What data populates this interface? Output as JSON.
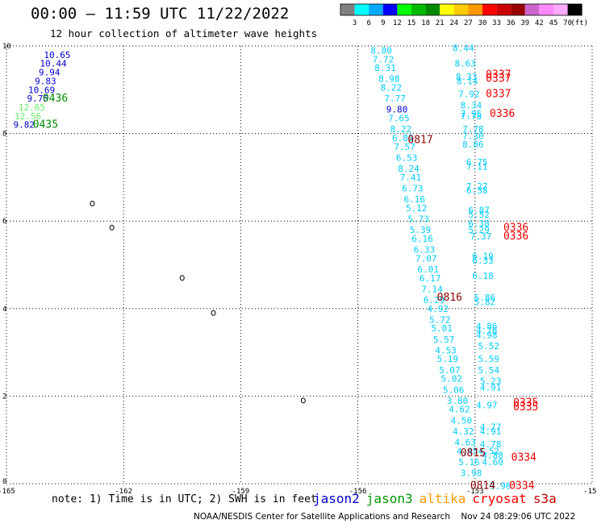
{
  "title": "00:00 – 11:59 UTC 11/22/2022",
  "subtitle": "12 hour collection of altimeter wave heights",
  "color_scale": {
    "labels": [
      "3",
      "6",
      "9",
      "12",
      "15",
      "18",
      "21",
      "24",
      "27",
      "30",
      "33",
      "36",
      "39",
      "42",
      "45",
      "70"
    ],
    "unit": "(ft)",
    "colors": [
      "#808080",
      "#00ffff",
      "#00aaff",
      "#0000ff",
      "#00ff00",
      "#00bb00",
      "#008800",
      "#ffff00",
      "#ffcc00",
      "#ff9900",
      "#ff0000",
      "#cc0000",
      "#990000",
      "#cc66cc",
      "#ff88ff",
      "#ffaaff",
      "#000000"
    ]
  },
  "axes": {
    "x_ticks": [
      "-165",
      "-162",
      "-159",
      "-156",
      "-153",
      "-150"
    ],
    "y_ticks": [
      "10",
      "8",
      "6",
      "4",
      "2",
      "0"
    ],
    "x_range": [
      -165,
      -150
    ],
    "y_range": [
      0,
      10
    ]
  },
  "colors": {
    "jason2": "#0000cc",
    "jason3": "#009900",
    "altika": "#ff9900",
    "cryosat": "#ff0000",
    "s3a": "#cc0000",
    "cyan": "#00ccff",
    "blue": "#0000cc",
    "green": "#008800",
    "lightgreen": "#66ee66",
    "red": "#ee0000",
    "darkred": "#880000"
  },
  "wave_heights": [
    {
      "v": "10.65",
      "lon": -163.7,
      "lat": 9.8,
      "c": "blue"
    },
    {
      "v": "10.44",
      "lon": -163.8,
      "lat": 9.6,
      "c": "blue"
    },
    {
      "v": "9.94",
      "lon": -163.9,
      "lat": 9.4,
      "c": "blue"
    },
    {
      "v": "9.83",
      "lon": -164.0,
      "lat": 9.2,
      "c": "blue"
    },
    {
      "v": "10.69",
      "lon": -164.1,
      "lat": 9.0,
      "c": "blue"
    },
    {
      "v": "9.75",
      "lon": -164.2,
      "lat": 8.8,
      "c": "blue"
    },
    {
      "v": "12.65",
      "lon": -164.35,
      "lat": 8.6,
      "c": "lightgreen"
    },
    {
      "v": "12.56",
      "lon": -164.45,
      "lat": 8.4,
      "c": "lightgreen"
    },
    {
      "v": "9.82",
      "lon": -164.55,
      "lat": 8.2,
      "c": "blue"
    },
    {
      "v": "8.80",
      "lon": -155.4,
      "lat": 9.9,
      "c": "cyan"
    },
    {
      "v": "7.72",
      "lon": -155.35,
      "lat": 9.7,
      "c": "cyan"
    },
    {
      "v": "8.31",
      "lon": -155.3,
      "lat": 9.5,
      "c": "cyan"
    },
    {
      "v": "8.98",
      "lon": -155.2,
      "lat": 9.25,
      "c": "cyan"
    },
    {
      "v": "8.22",
      "lon": -155.15,
      "lat": 9.05,
      "c": "cyan"
    },
    {
      "v": "7.77",
      "lon": -155.05,
      "lat": 8.8,
      "c": "cyan"
    },
    {
      "v": "9.80",
      "lon": -155.0,
      "lat": 8.55,
      "c": "blue"
    },
    {
      "v": "7.65",
      "lon": -154.95,
      "lat": 8.35,
      "c": "cyan"
    },
    {
      "v": "8.22",
      "lon": -154.9,
      "lat": 8.1,
      "c": "cyan"
    },
    {
      "v": "6.85",
      "lon": -154.85,
      "lat": 7.9,
      "c": "cyan"
    },
    {
      "v": "7.57",
      "lon": -154.8,
      "lat": 7.7,
      "c": "cyan"
    },
    {
      "v": "6.53",
      "lon": -154.75,
      "lat": 7.45,
      "c": "cyan"
    },
    {
      "v": "8.24",
      "lon": -154.7,
      "lat": 7.2,
      "c": "cyan"
    },
    {
      "v": "7.41",
      "lon": -154.65,
      "lat": 7.0,
      "c": "cyan"
    },
    {
      "v": "6.73",
      "lon": -154.6,
      "lat": 6.75,
      "c": "cyan"
    },
    {
      "v": "6.16",
      "lon": -154.55,
      "lat": 6.5,
      "c": "cyan"
    },
    {
      "v": "5.12",
      "lon": -154.5,
      "lat": 6.3,
      "c": "cyan"
    },
    {
      "v": "5.73",
      "lon": -154.45,
      "lat": 6.05,
      "c": "cyan"
    },
    {
      "v": "5.39",
      "lon": -154.4,
      "lat": 5.8,
      "c": "cyan"
    },
    {
      "v": "6.16",
      "lon": -154.35,
      "lat": 5.6,
      "c": "cyan"
    },
    {
      "v": "6.33",
      "lon": -154.3,
      "lat": 5.35,
      "c": "cyan"
    },
    {
      "v": "7.07",
      "lon": -154.25,
      "lat": 5.15,
      "c": "cyan"
    },
    {
      "v": "6.01",
      "lon": -154.2,
      "lat": 4.9,
      "c": "cyan"
    },
    {
      "v": "6.17",
      "lon": -154.15,
      "lat": 4.7,
      "c": "cyan"
    },
    {
      "v": "7.14",
      "lon": -154.1,
      "lat": 4.45,
      "c": "cyan"
    },
    {
      "v": "6.29",
      "lon": -154.05,
      "lat": 4.2,
      "c": "cyan"
    },
    {
      "v": "4.92",
      "lon": -153.95,
      "lat": 4.0,
      "c": "cyan"
    },
    {
      "v": "5.72",
      "lon": -153.9,
      "lat": 3.75,
      "c": "cyan"
    },
    {
      "v": "5.01",
      "lon": -153.85,
      "lat": 3.55,
      "c": "cyan"
    },
    {
      "v": "5.57",
      "lon": -153.8,
      "lat": 3.3,
      "c": "cyan"
    },
    {
      "v": "4.53",
      "lon": -153.75,
      "lat": 3.05,
      "c": "cyan"
    },
    {
      "v": "5.19",
      "lon": -153.7,
      "lat": 2.85,
      "c": "cyan"
    },
    {
      "v": "5.07",
      "lon": -153.65,
      "lat": 2.6,
      "c": "cyan"
    },
    {
      "v": "5.02",
      "lon": -153.6,
      "lat": 2.4,
      "c": "cyan"
    },
    {
      "v": "5.06",
      "lon": -153.55,
      "lat": 2.15,
      "c": "cyan"
    },
    {
      "v": "3.80",
      "lon": -153.45,
      "lat": 1.9,
      "c": "cyan"
    },
    {
      "v": "4.62",
      "lon": -153.4,
      "lat": 1.7,
      "c": "cyan"
    },
    {
      "v": "4.50",
      "lon": -153.35,
      "lat": 1.45,
      "c": "cyan"
    },
    {
      "v": "4.32",
      "lon": -153.3,
      "lat": 1.2,
      "c": "cyan"
    },
    {
      "v": "4.63",
      "lon": -153.25,
      "lat": 0.95,
      "c": "cyan"
    },
    {
      "v": "4.45",
      "lon": -153.2,
      "lat": 0.75,
      "c": "cyan"
    },
    {
      "v": "5.16",
      "lon": -153.15,
      "lat": 0.5,
      "c": "cyan"
    },
    {
      "v": "3.98",
      "lon": -153.1,
      "lat": 0.25,
      "c": "cyan"
    },
    {
      "v": "8.44",
      "lon": -153.3,
      "lat": 9.95,
      "c": "cyan"
    },
    {
      "v": "8.63",
      "lon": -153.25,
      "lat": 9.6,
      "c": "cyan"
    },
    {
      "v": "8.33",
      "lon": -153.22,
      "lat": 9.3,
      "c": "cyan"
    },
    {
      "v": "8.14",
      "lon": -153.2,
      "lat": 9.2,
      "c": "cyan"
    },
    {
      "v": "7.92",
      "lon": -153.15,
      "lat": 8.9,
      "c": "cyan"
    },
    {
      "v": "8.34",
      "lon": -153.1,
      "lat": 8.65,
      "c": "cyan"
    },
    {
      "v": "7.95",
      "lon": -153.1,
      "lat": 8.45,
      "c": "cyan"
    },
    {
      "v": "7.78",
      "lon": -153.1,
      "lat": 8.4,
      "c": "cyan"
    },
    {
      "v": "7.78",
      "lon": -153.05,
      "lat": 8.1,
      "c": "cyan"
    },
    {
      "v": "7.30",
      "lon": -153.05,
      "lat": 7.95,
      "c": "cyan"
    },
    {
      "v": "8.06",
      "lon": -153.05,
      "lat": 7.75,
      "c": "cyan"
    },
    {
      "v": "6.75",
      "lon": -152.95,
      "lat": 7.35,
      "c": "cyan"
    },
    {
      "v": "7.11",
      "lon": -152.95,
      "lat": 7.25,
      "c": "cyan"
    },
    {
      "v": "7.27",
      "lon": -152.95,
      "lat": 6.8,
      "c": "cyan"
    },
    {
      "v": "6.38",
      "lon": -152.95,
      "lat": 6.7,
      "c": "cyan"
    },
    {
      "v": "6.87",
      "lon": -152.9,
      "lat": 6.25,
      "c": "cyan"
    },
    {
      "v": "5.52",
      "lon": -152.9,
      "lat": 6.15,
      "c": "cyan"
    },
    {
      "v": "6.38",
      "lon": -152.9,
      "lat": 5.95,
      "c": "cyan"
    },
    {
      "v": "5.29",
      "lon": -152.9,
      "lat": 5.8,
      "c": "cyan"
    },
    {
      "v": "7.37",
      "lon": -152.85,
      "lat": 5.65,
      "c": "cyan"
    },
    {
      "v": "6.19",
      "lon": -152.8,
      "lat": 5.2,
      "c": "cyan"
    },
    {
      "v": "6.33",
      "lon": -152.8,
      "lat": 5.1,
      "c": "cyan"
    },
    {
      "v": "6.18",
      "lon": -152.8,
      "lat": 4.75,
      "c": "cyan"
    },
    {
      "v": "5.86",
      "lon": -152.75,
      "lat": 4.25,
      "c": "cyan"
    },
    {
      "v": "5.82",
      "lon": -152.75,
      "lat": 4.15,
      "c": "cyan"
    },
    {
      "v": "4.86",
      "lon": -152.7,
      "lat": 3.6,
      "c": "cyan"
    },
    {
      "v": "4.76",
      "lon": -152.7,
      "lat": 3.5,
      "c": "cyan"
    },
    {
      "v": "4.98",
      "lon": -152.7,
      "lat": 3.4,
      "c": "cyan"
    },
    {
      "v": "5.52",
      "lon": -152.65,
      "lat": 3.15,
      "c": "cyan"
    },
    {
      "v": "5.59",
      "lon": -152.65,
      "lat": 2.85,
      "c": "cyan"
    },
    {
      "v": "5.54",
      "lon": -152.65,
      "lat": 2.6,
      "c": "cyan"
    },
    {
      "v": "5.23",
      "lon": -152.6,
      "lat": 2.35,
      "c": "cyan"
    },
    {
      "v": "4.91",
      "lon": -152.6,
      "lat": 2.2,
      "c": "cyan"
    },
    {
      "v": "4.97",
      "lon": -152.7,
      "lat": 1.8,
      "c": "cyan"
    },
    {
      "v": "4.77",
      "lon": -152.6,
      "lat": 1.3,
      "c": "cyan"
    },
    {
      "v": "4.91",
      "lon": -152.6,
      "lat": 1.2,
      "c": "cyan"
    },
    {
      "v": "4.78",
      "lon": -152.6,
      "lat": 0.9,
      "c": "cyan"
    },
    {
      "v": "4.52",
      "lon": -152.65,
      "lat": 0.75,
      "c": "cyan"
    },
    {
      "v": "4.88",
      "lon": -152.55,
      "lat": 0.65,
      "c": "cyan"
    },
    {
      "v": "4.60",
      "lon": -152.55,
      "lat": 0.5,
      "c": "cyan"
    },
    {
      "v": "3.96",
      "lon": -152.35,
      "lat": -0.05,
      "c": "cyan"
    }
  ],
  "pass_labels": [
    {
      "v": "0436",
      "lon": -163.75,
      "lat": 8.8,
      "c": "green"
    },
    {
      "v": "0435",
      "lon": -164.0,
      "lat": 8.2,
      "c": "green"
    },
    {
      "v": "0817",
      "lon": -154.4,
      "lat": 7.85,
      "c": "darkred"
    },
    {
      "v": "0337",
      "lon": -152.4,
      "lat": 9.35,
      "c": "red"
    },
    {
      "v": "0337",
      "lon": -152.4,
      "lat": 9.25,
      "c": "red"
    },
    {
      "v": "0337",
      "lon": -152.4,
      "lat": 8.9,
      "c": "red"
    },
    {
      "v": "0336",
      "lon": -152.3,
      "lat": 8.45,
      "c": "red"
    },
    {
      "v": "0336",
      "lon": -151.95,
      "lat": 5.85,
      "c": "red"
    },
    {
      "v": "0336",
      "lon": -151.95,
      "lat": 5.65,
      "c": "red"
    },
    {
      "v": "0816",
      "lon": -153.65,
      "lat": 4.25,
      "c": "darkred"
    },
    {
      "v": "0335",
      "lon": -151.7,
      "lat": 1.85,
      "c": "red"
    },
    {
      "v": "0335",
      "lon": -151.7,
      "lat": 1.75,
      "c": "red"
    },
    {
      "v": "0815",
      "lon": -153.05,
      "lat": 0.7,
      "c": "darkred"
    },
    {
      "v": "0334",
      "lon": -151.75,
      "lat": 0.6,
      "c": "red"
    },
    {
      "v": "0814",
      "lon": -152.8,
      "lat": -0.05,
      "c": "darkred"
    },
    {
      "v": "0334",
      "lon": -151.8,
      "lat": -0.05,
      "c": "red"
    }
  ],
  "islands": [
    {
      "lon": -162.8,
      "lat": 6.4
    },
    {
      "lon": -162.3,
      "lat": 5.85
    },
    {
      "lon": -160.5,
      "lat": 4.7
    },
    {
      "lon": -159.7,
      "lat": 3.9
    },
    {
      "lon": -157.4,
      "lat": 1.9
    }
  ],
  "note": "note: 1) Time is in UTC; 2) SWH is in feet",
  "legend": [
    {
      "label": "jason2",
      "c": "jason2"
    },
    {
      "label": "jason3",
      "c": "jason3"
    },
    {
      "label": "altika",
      "c": "altika"
    },
    {
      "label": "cryosat",
      "c": "cryosat"
    },
    {
      "label": "s3a",
      "c": "s3a"
    }
  ],
  "credit": "NOAA/NESDIS Center for Satellite Applications and Research    Nov 24 08:29:06 UTC 2022"
}
